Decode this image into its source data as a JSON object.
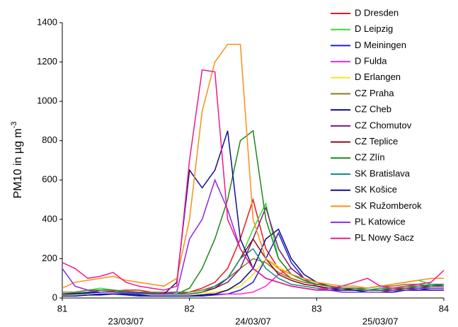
{
  "chart_data": {
    "type": "line",
    "ylabel": "PM10 in µg m",
    "ylabel_sup": "-3",
    "x": [
      81.0,
      81.1,
      81.2,
      81.3,
      81.4,
      81.5,
      81.6,
      81.7,
      81.8,
      81.9,
      82.0,
      82.1,
      82.2,
      82.3,
      82.4,
      82.5,
      82.6,
      82.7,
      82.8,
      82.9,
      83.0,
      83.1,
      83.2,
      83.3,
      83.4,
      83.5,
      83.6,
      83.7,
      83.8,
      83.9,
      84.0
    ],
    "xlim": [
      81,
      84
    ],
    "xticks": [
      81,
      82,
      83,
      84
    ],
    "date_ticks": [
      {
        "value": 81.5,
        "label": "23/03/07"
      },
      {
        "value": 82.5,
        "label": "24/03/07"
      },
      {
        "value": 83.5,
        "label": "25/03/07"
      }
    ],
    "ylim": [
      0,
      1400
    ],
    "yticks": [
      0,
      200,
      400,
      600,
      800,
      1000,
      1200,
      1400
    ],
    "series": [
      {
        "name": "D Dresden",
        "color": "#e41a1c",
        "values": [
          20,
          25,
          30,
          30,
          35,
          40,
          40,
          30,
          25,
          20,
          30,
          50,
          80,
          150,
          300,
          500,
          250,
          150,
          100,
          80,
          70,
          60,
          50,
          50,
          40,
          40,
          50,
          50,
          60,
          60,
          70
        ]
      },
      {
        "name": "D Leipzig",
        "color": "#33dd33",
        "values": [
          30,
          30,
          40,
          50,
          40,
          30,
          30,
          30,
          20,
          20,
          20,
          30,
          50,
          100,
          200,
          350,
          480,
          200,
          120,
          90,
          70,
          60,
          50,
          50,
          50,
          60,
          70,
          80,
          90,
          70,
          60
        ]
      },
      {
        "name": "D Meiningen",
        "color": "#1f1fdd",
        "values": [
          10,
          10,
          15,
          20,
          20,
          15,
          10,
          10,
          10,
          10,
          10,
          10,
          15,
          20,
          40,
          80,
          200,
          330,
          180,
          100,
          60,
          50,
          40,
          40,
          30,
          30,
          30,
          40,
          40,
          50,
          50
        ]
      },
      {
        "name": "D Fulda",
        "color": "#ff22dd",
        "values": [
          20,
          20,
          25,
          30,
          30,
          25,
          20,
          20,
          20,
          20,
          20,
          20,
          20,
          20,
          20,
          30,
          60,
          120,
          150,
          100,
          60,
          40,
          30,
          30,
          30,
          30,
          30,
          40,
          40,
          40,
          40
        ]
      },
      {
        "name": "D Erlangen",
        "color": "#eeee22",
        "values": [
          15,
          20,
          25,
          30,
          30,
          30,
          25,
          20,
          20,
          20,
          20,
          20,
          30,
          40,
          60,
          120,
          200,
          160,
          120,
          100,
          80,
          60,
          50,
          50,
          40,
          40,
          50,
          50,
          60,
          60,
          60
        ]
      },
      {
        "name": "CZ Praha",
        "color": "#8b7d1a",
        "values": [
          30,
          30,
          40,
          40,
          40,
          35,
          30,
          30,
          30,
          30,
          30,
          40,
          60,
          100,
          150,
          200,
          180,
          130,
          100,
          80,
          70,
          60,
          50,
          50,
          50,
          60,
          60,
          70,
          70,
          60,
          60
        ]
      },
      {
        "name": "CZ Cheb",
        "color": "#0a0a80",
        "values": [
          10,
          10,
          15,
          15,
          20,
          20,
          15,
          10,
          10,
          10,
          10,
          15,
          20,
          40,
          80,
          150,
          300,
          350,
          200,
          120,
          80,
          60,
          50,
          40,
          40,
          40,
          40,
          40,
          50,
          50,
          50
        ]
      },
      {
        "name": "CZ Chomutov",
        "color": "#7a1a7a",
        "values": [
          20,
          20,
          25,
          30,
          30,
          30,
          25,
          25,
          20,
          20,
          20,
          30,
          50,
          80,
          150,
          300,
          460,
          250,
          150,
          100,
          80,
          60,
          50,
          40,
          40,
          40,
          40,
          50,
          50,
          60,
          60
        ]
      },
      {
        "name": "CZ Teplice",
        "color": "#8b0a1a",
        "values": [
          20,
          20,
          25,
          30,
          30,
          30,
          25,
          20,
          20,
          20,
          20,
          30,
          50,
          100,
          200,
          300,
          200,
          120,
          90,
          70,
          60,
          50,
          50,
          40,
          40,
          40,
          40,
          50,
          50,
          60,
          60
        ]
      },
      {
        "name": "CZ Zlín",
        "color": "#1a8a1a",
        "values": [
          20,
          25,
          30,
          40,
          40,
          30,
          30,
          25,
          20,
          20,
          50,
          150,
          300,
          500,
          800,
          850,
          400,
          200,
          120,
          90,
          70,
          60,
          50,
          50,
          40,
          40,
          50,
          50,
          60,
          60,
          70
        ]
      },
      {
        "name": "SK Bratislava",
        "color": "#1a8a8a",
        "values": [
          20,
          20,
          25,
          30,
          30,
          25,
          20,
          20,
          20,
          20,
          20,
          30,
          60,
          100,
          200,
          250,
          150,
          100,
          70,
          60,
          50,
          40,
          40,
          40,
          40,
          50,
          50,
          60,
          60,
          70,
          70
        ]
      },
      {
        "name": "SK Košice",
        "color": "#101090",
        "values": [
          20,
          20,
          25,
          30,
          30,
          30,
          25,
          20,
          20,
          80,
          650,
          560,
          650,
          850,
          300,
          150,
          100,
          80,
          60,
          50,
          40,
          40,
          40,
          40,
          30,
          30,
          30,
          40,
          40,
          40,
          40
        ]
      },
      {
        "name": "SK Ružomberok",
        "color": "#ff8c1a",
        "values": [
          50,
          80,
          90,
          100,
          110,
          90,
          80,
          70,
          60,
          100,
          400,
          950,
          1200,
          1290,
          1290,
          400,
          200,
          150,
          120,
          100,
          80,
          70,
          60,
          60,
          50,
          60,
          70,
          80,
          90,
          100,
          100
        ]
      },
      {
        "name": "PL Katowice",
        "color": "#8a2be2",
        "values": [
          150,
          60,
          40,
          30,
          30,
          30,
          25,
          20,
          20,
          30,
          300,
          400,
          600,
          450,
          250,
          150,
          100,
          80,
          60,
          50,
          40,
          40,
          30,
          30,
          30,
          30,
          40,
          40,
          50,
          50,
          50
        ]
      },
      {
        "name": "PL Nowy Sacz",
        "color": "#ee1a8a",
        "values": [
          180,
          150,
          100,
          110,
          130,
          80,
          60,
          50,
          40,
          60,
          700,
          1160,
          1150,
          400,
          250,
          150,
          100,
          80,
          60,
          50,
          40,
          50,
          60,
          80,
          100,
          60,
          50,
          60,
          70,
          80,
          140
        ]
      }
    ]
  }
}
